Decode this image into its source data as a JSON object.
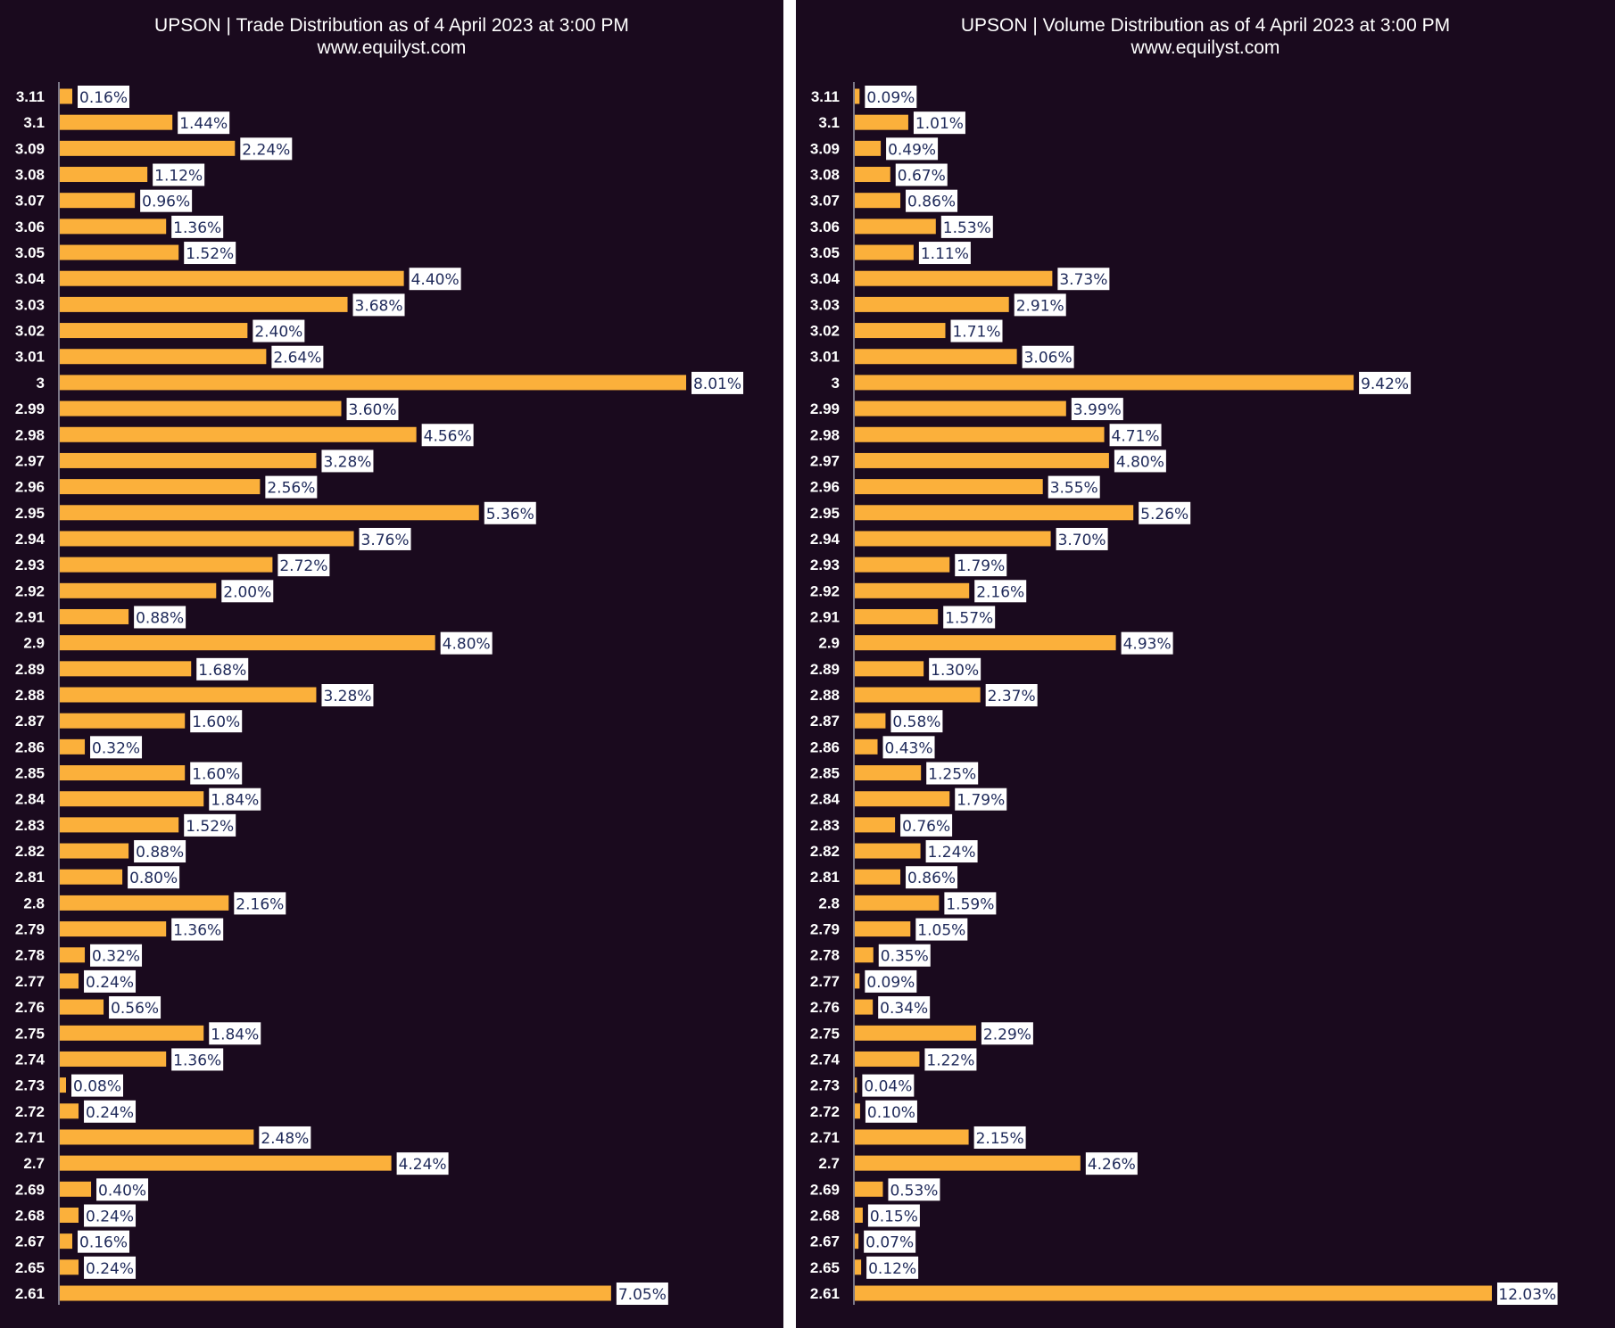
{
  "charts": [
    {
      "title": "UPSON | Trade Distribution as of 4 April 2023 at 3:00 PM",
      "subtitle": "www.equilyst.com"
    },
    {
      "title": "UPSON | Volume Distribution as of 4 April 2023 at 3:00 PM",
      "subtitle": "www.equilyst.com"
    }
  ],
  "colors": {
    "background": "#1a0a1e",
    "bar": "#fbb03b",
    "label_bg": "#ffffff",
    "label_text": "#1f2a5a",
    "tick_text": "#ffffff"
  },
  "chart_data": [
    {
      "type": "bar",
      "orientation": "horizontal",
      "title": "UPSON | Trade Distribution as of 4 April 2023 at 3:00 PM",
      "subtitle": "www.equilyst.com",
      "categories": [
        "3.11",
        "3.1",
        "3.09",
        "3.08",
        "3.07",
        "3.06",
        "3.05",
        "3.04",
        "3.03",
        "3.02",
        "3.01",
        "3",
        "2.99",
        "2.98",
        "2.97",
        "2.96",
        "2.95",
        "2.94",
        "2.93",
        "2.92",
        "2.91",
        "2.9",
        "2.89",
        "2.88",
        "2.87",
        "2.86",
        "2.85",
        "2.84",
        "2.83",
        "2.82",
        "2.81",
        "2.8",
        "2.79",
        "2.78",
        "2.77",
        "2.76",
        "2.75",
        "2.74",
        "2.73",
        "2.72",
        "2.71",
        "2.7",
        "2.69",
        "2.68",
        "2.67",
        "2.65",
        "2.61"
      ],
      "values": [
        0.16,
        1.44,
        2.24,
        1.12,
        0.96,
        1.36,
        1.52,
        4.4,
        3.68,
        2.4,
        2.64,
        8.01,
        3.6,
        4.56,
        3.28,
        2.56,
        5.36,
        3.76,
        2.72,
        2.0,
        0.88,
        4.8,
        1.68,
        3.28,
        1.6,
        0.32,
        1.6,
        1.84,
        1.52,
        0.88,
        0.8,
        2.16,
        1.36,
        0.32,
        0.24,
        0.56,
        1.84,
        1.36,
        0.08,
        0.24,
        2.48,
        4.24,
        0.4,
        0.24,
        0.16,
        0.24,
        7.05
      ],
      "data_labels": [
        "0.16%",
        "1.44%",
        "2.24%",
        "1.12%",
        "0.96%",
        "1.36%",
        "1.52%",
        "4.40%",
        "3.68%",
        "2.40%",
        "2.64%",
        "8.01%",
        "3.60%",
        "4.56%",
        "3.28%",
        "2.56%",
        "5.36%",
        "3.76%",
        "2.72%",
        "2.00%",
        "0.88%",
        "4.80%",
        "1.68%",
        "3.28%",
        "1.60%",
        "0.32%",
        "1.60%",
        "1.84%",
        "1.52%",
        "0.88%",
        "0.80%",
        "2.16%",
        "1.36%",
        "0.32%",
        "0.24%",
        "0.56%",
        "1.84%",
        "1.36%",
        "0.08%",
        "0.24%",
        "2.48%",
        "4.24%",
        "0.40%",
        "0.24%",
        "0.16%",
        "0.24%",
        "7.05%"
      ],
      "xlim": [
        0,
        8.01
      ],
      "grid": false,
      "legend": "none"
    },
    {
      "type": "bar",
      "orientation": "horizontal",
      "title": "UPSON | Volume Distribution as of 4 April 2023 at 3:00 PM",
      "subtitle": "www.equilyst.com",
      "categories": [
        "3.11",
        "3.1",
        "3.09",
        "3.08",
        "3.07",
        "3.06",
        "3.05",
        "3.04",
        "3.03",
        "3.02",
        "3.01",
        "3",
        "2.99",
        "2.98",
        "2.97",
        "2.96",
        "2.95",
        "2.94",
        "2.93",
        "2.92",
        "2.91",
        "2.9",
        "2.89",
        "2.88",
        "2.87",
        "2.86",
        "2.85",
        "2.84",
        "2.83",
        "2.82",
        "2.81",
        "2.8",
        "2.79",
        "2.78",
        "2.77",
        "2.76",
        "2.75",
        "2.74",
        "2.73",
        "2.72",
        "2.71",
        "2.7",
        "2.69",
        "2.68",
        "2.67",
        "2.65",
        "2.61"
      ],
      "values": [
        0.09,
        1.01,
        0.49,
        0.67,
        0.86,
        1.53,
        1.11,
        3.73,
        2.91,
        1.71,
        3.06,
        9.42,
        3.99,
        4.71,
        4.8,
        3.55,
        5.26,
        3.7,
        1.79,
        2.16,
        1.57,
        4.93,
        1.3,
        2.37,
        0.58,
        0.43,
        1.25,
        1.79,
        0.76,
        1.24,
        0.86,
        1.59,
        1.05,
        0.35,
        0.09,
        0.34,
        2.29,
        1.22,
        0.04,
        0.1,
        2.15,
        4.26,
        0.53,
        0.15,
        0.07,
        0.12,
        12.03
      ],
      "data_labels": [
        "0.09%",
        "1.01%",
        "0.49%",
        "0.67%",
        "0.86%",
        "1.53%",
        "1.11%",
        "3.73%",
        "2.91%",
        "1.71%",
        "3.06%",
        "9.42%",
        "3.99%",
        "4.71%",
        "4.80%",
        "3.55%",
        "5.26%",
        "3.70%",
        "1.79%",
        "2.16%",
        "1.57%",
        "4.93%",
        "1.30%",
        "2.37%",
        "0.58%",
        "0.43%",
        "1.25%",
        "1.79%",
        "0.76%",
        "1.24%",
        "0.86%",
        "1.59%",
        "1.05%",
        "0.35%",
        "0.09%",
        "0.34%",
        "2.29%",
        "1.22%",
        "0.04%",
        "0.10%",
        "2.15%",
        "4.26%",
        "0.53%",
        "0.15%",
        "0.07%",
        "0.12%",
        "12.03%"
      ],
      "xlim": [
        0,
        12.03
      ],
      "grid": false,
      "legend": "none"
    }
  ]
}
